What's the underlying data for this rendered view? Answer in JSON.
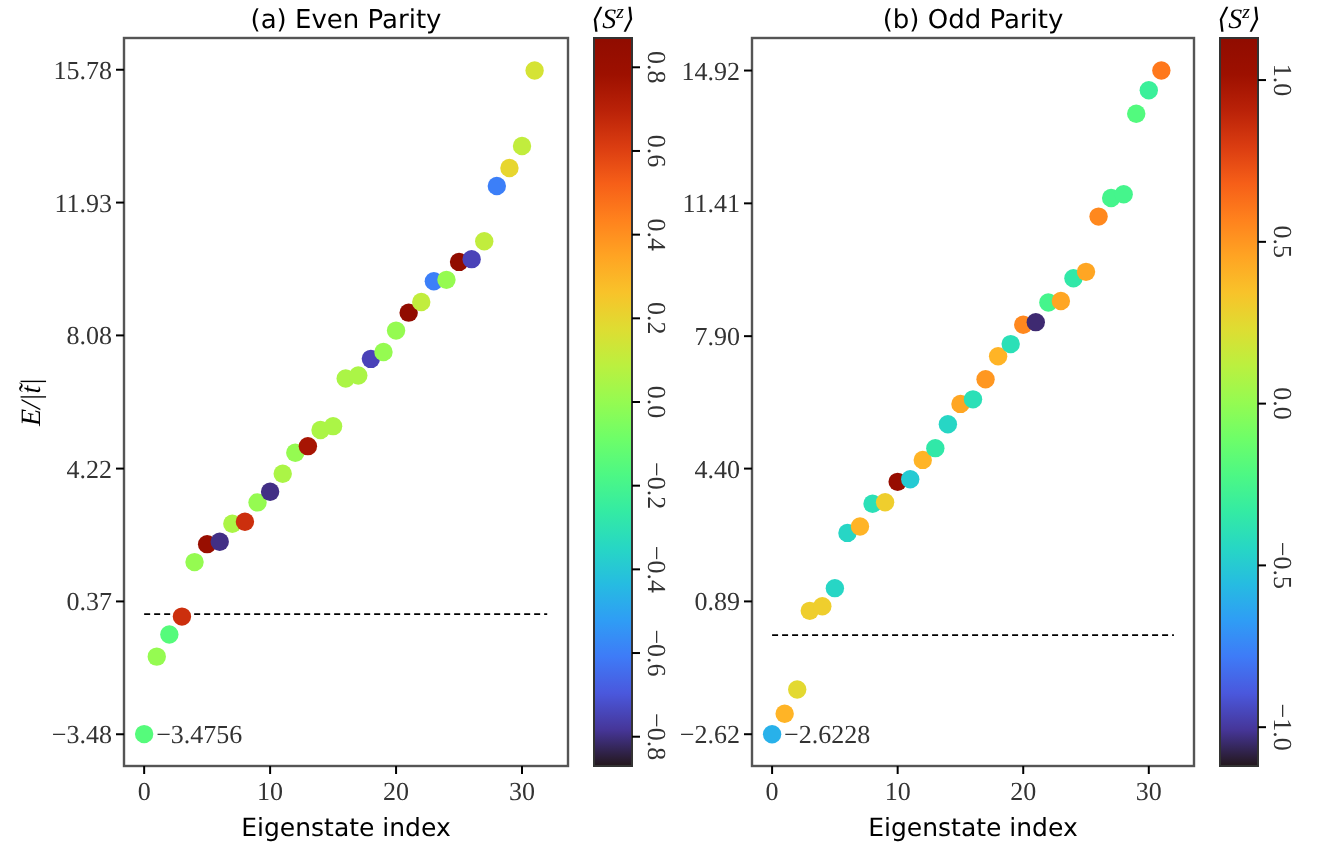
{
  "chart_data": [
    {
      "type": "scatter",
      "title": "(a) Even Parity",
      "xlabel": "Eigenstate index",
      "ylabel": "E/|t̃|",
      "clabel": "⟨S$^{z}$⟩",
      "marker": "circle",
      "x": [
        0,
        1,
        2,
        3,
        4,
        5,
        6,
        7,
        8,
        9,
        10,
        11,
        12,
        13,
        14,
        15,
        16,
        17,
        18,
        19,
        20,
        21,
        22,
        23,
        24,
        25,
        26,
        27,
        28,
        29,
        30,
        31
      ],
      "values": [
        -3.4756,
        -1.23,
        -0.59,
        -0.07,
        1.51,
        2.03,
        2.1,
        2.62,
        2.68,
        3.24,
        3.55,
        4.07,
        4.68,
        4.87,
        5.34,
        5.45,
        6.83,
        6.92,
        7.4,
        7.6,
        8.22,
        8.74,
        9.05,
        9.65,
        9.69,
        10.21,
        10.29,
        10.81,
        12.41,
        12.93,
        13.57,
        15.76
      ],
      "cvalues": [
        -0.15,
        0.0,
        -0.15,
        0.65,
        0.0,
        0.8,
        -0.8,
        0.05,
        0.65,
        0.0,
        -0.8,
        0.05,
        0.0,
        0.75,
        0.05,
        0.05,
        0.05,
        0.05,
        -0.75,
        0.0,
        0.0,
        0.85,
        0.1,
        -0.6,
        0.0,
        0.85,
        -0.75,
        0.1,
        -0.6,
        0.2,
        0.1,
        0.15
      ],
      "xlim": [
        -1.6,
        33.65
      ],
      "xticks": [
        0,
        10,
        20,
        30
      ],
      "ylim": [
        -4.4,
        16.7
      ],
      "yticks": [
        {
          "value": -3.48,
          "label": "−3.48"
        },
        0.37,
        4.22,
        8.08,
        11.93,
        15.78
      ],
      "clim": [
        -0.87,
        0.87
      ],
      "cticks": [
        {
          "value": -0.8,
          "label": "−0.8"
        },
        {
          "value": -0.6,
          "label": "−0.6"
        },
        {
          "value": -0.4,
          "label": "−0.4"
        },
        {
          "value": -0.2,
          "label": "−0.2"
        },
        {
          "value": 0,
          "label": "0.0"
        },
        0.2,
        0.4,
        0.6,
        0.8
      ],
      "ref_lines": [
        {
          "axis": "y",
          "value": 0,
          "color": "#000000",
          "line_style": "dashed"
        }
      ],
      "annotations": [
        {
          "text": "−3.4756",
          "x": 0,
          "y": -3.4756
        }
      ]
    },
    {
      "type": "scatter",
      "title": "(b) Odd Parity",
      "xlabel": "Eigenstate index",
      "clabel": "⟨S$^{z}$⟩",
      "marker": "circle",
      "x": [
        0,
        1,
        2,
        3,
        4,
        5,
        6,
        7,
        8,
        9,
        10,
        11,
        12,
        13,
        14,
        15,
        16,
        17,
        18,
        19,
        20,
        21,
        22,
        23,
        24,
        25,
        26,
        27,
        28,
        29,
        30,
        31
      ],
      "values": [
        -2.6228,
        -2.08,
        -1.44,
        0.64,
        0.76,
        1.24,
        2.7,
        2.87,
        3.47,
        3.51,
        4.05,
        4.12,
        4.63,
        4.94,
        5.57,
        6.11,
        6.23,
        6.76,
        7.37,
        7.69,
        8.2,
        8.27,
        8.79,
        8.83,
        9.43,
        9.6,
        11.06,
        11.55,
        11.65,
        13.78,
        14.4,
        14.92
      ],
      "cvalues": [
        -0.6,
        0.4,
        0.25,
        0.3,
        0.3,
        -0.45,
        -0.45,
        0.4,
        -0.4,
        0.3,
        1.05,
        -0.5,
        0.4,
        -0.35,
        -0.45,
        0.45,
        -0.4,
        0.5,
        0.4,
        -0.4,
        0.55,
        -1.05,
        -0.25,
        0.45,
        -0.35,
        0.45,
        0.55,
        -0.25,
        -0.25,
        -0.2,
        -0.3,
        0.6
      ],
      "xlim": [
        -1.6,
        33.6
      ],
      "xticks": [
        0,
        10,
        20,
        30
      ],
      "ylim": [
        -3.46,
        15.78
      ],
      "yticks": [
        {
          "value": -2.62,
          "label": "−2.62"
        },
        0.89,
        {
          "value": 4.4,
          "label": "4.40"
        },
        {
          "value": 7.9,
          "label": "7.90"
        },
        11.41,
        14.92
      ],
      "clim": [
        -1.12,
        1.13
      ],
      "cticks": [
        {
          "value": -1,
          "label": "−1.0"
        },
        {
          "value": -0.5,
          "label": "−0.5"
        },
        {
          "value": 0,
          "label": "0.0"
        },
        0.5,
        {
          "value": 1,
          "label": "1.0"
        }
      ],
      "ref_lines": [
        {
          "axis": "y",
          "value": 0,
          "color": "#000000",
          "line_style": "dashed"
        }
      ],
      "annotations": [
        {
          "text": "−2.6228",
          "x": 0,
          "y": -2.6228
        }
      ]
    }
  ]
}
